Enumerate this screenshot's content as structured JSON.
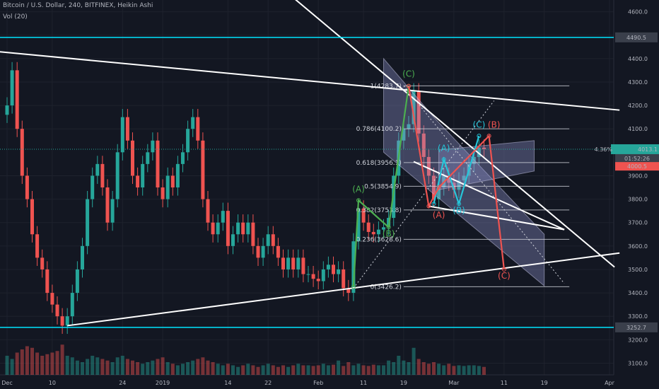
{
  "header": {
    "title": "Bitcoin / U.S. Dollar, 240, BITFINEX, Heikin Ashi",
    "volume_label": "Vol (20)"
  },
  "chart_data": {
    "type": "candlestick",
    "symbol": "Bitcoin / U.S. Dollar",
    "interval": "240",
    "exchange": "BITFINEX",
    "style": "Heikin Ashi",
    "ylim": [
      3050,
      4650
    ],
    "y_ticks": [
      4600.0,
      4500.0,
      4400.0,
      4300.0,
      4200.0,
      4100.0,
      3900.0,
      3800.0,
      3700.0,
      3600.0,
      3500.0,
      3400.0,
      3300.0,
      3200.0,
      3100.0
    ],
    "x_ticks": [
      "Dec",
      "10",
      "24",
      "2019",
      "14",
      "22",
      "Feb",
      "11",
      "19",
      "Mar",
      "11",
      "19",
      "Apr"
    ],
    "x_tick_days": [
      0,
      9,
      23,
      31,
      44,
      52,
      62,
      71,
      79,
      89,
      99,
      107,
      120
    ],
    "price_series": {
      "name": "BTC/USD Heikin Ashi (approx. daily)",
      "days": [
        0,
        1,
        2,
        3,
        4,
        5,
        6,
        7,
        8,
        9,
        10,
        11,
        12,
        13,
        14,
        15,
        16,
        17,
        18,
        19,
        20,
        21,
        22,
        23,
        24,
        25,
        26,
        27,
        28,
        29,
        30,
        31,
        32,
        33,
        34,
        35,
        36,
        37,
        38,
        39,
        40,
        41,
        42,
        43,
        44,
        45,
        46,
        47,
        48,
        49,
        50,
        51,
        52,
        53,
        54,
        55,
        56,
        57,
        58,
        59,
        60,
        61,
        62,
        63,
        64,
        65,
        66,
        67,
        68,
        69,
        70,
        71,
        72,
        73,
        74,
        75,
        76,
        77,
        78,
        79,
        80,
        81,
        82,
        83,
        84,
        85,
        86,
        87,
        88,
        89,
        90,
        91,
        92,
        93,
        94,
        95
      ],
      "values": [
        4200,
        4350,
        4100,
        3900,
        3800,
        3650,
        3550,
        3500,
        3400,
        3350,
        3300,
        3260,
        3300,
        3400,
        3500,
        3600,
        3800,
        3900,
        3950,
        3850,
        3700,
        3800,
        4000,
        4150,
        4050,
        3900,
        3850,
        3950,
        4000,
        4050,
        3850,
        3800,
        3900,
        3850,
        3950,
        4000,
        4100,
        4150,
        4050,
        3800,
        3700,
        3650,
        3700,
        3750,
        3600,
        3650,
        3700,
        3650,
        3700,
        3600,
        3550,
        3600,
        3650,
        3600,
        3550,
        3500,
        3550,
        3500,
        3550,
        3480,
        3480,
        3460,
        3450,
        3500,
        3520,
        3480,
        3500,
        3420,
        3400,
        3620,
        3760,
        3700,
        3660,
        3650,
        3670,
        3680,
        3720,
        3900,
        4050,
        4100,
        4120,
        4260,
        4080,
        3980,
        3900,
        3800,
        3850,
        3900,
        3870,
        3840,
        3880,
        3900,
        3950,
        3980,
        4020,
        4013
      ]
    },
    "volume_series": {
      "name": "Vol (20)",
      "days": [
        0,
        1,
        2,
        3,
        4,
        5,
        6,
        7,
        8,
        9,
        10,
        11,
        12,
        13,
        14,
        15,
        16,
        17,
        18,
        19,
        20,
        21,
        22,
        23,
        24,
        25,
        26,
        27,
        28,
        29,
        30,
        31,
        32,
        33,
        34,
        35,
        36,
        37,
        38,
        39,
        40,
        41,
        42,
        43,
        44,
        45,
        46,
        47,
        48,
        49,
        50,
        51,
        52,
        53,
        54,
        55,
        56,
        57,
        58,
        59,
        60,
        61,
        62,
        63,
        64,
        65,
        66,
        67,
        68,
        69,
        70,
        71,
        72,
        73,
        74,
        75,
        76,
        77,
        78,
        79,
        80,
        81,
        82,
        83,
        84,
        85,
        86,
        87,
        88,
        89,
        90,
        91,
        92,
        93,
        94,
        95
      ],
      "values": [
        60,
        50,
        70,
        80,
        90,
        85,
        70,
        60,
        65,
        70,
        75,
        95,
        60,
        55,
        45,
        40,
        50,
        60,
        55,
        50,
        45,
        40,
        55,
        60,
        50,
        45,
        40,
        35,
        40,
        45,
        50,
        55,
        40,
        35,
        30,
        35,
        40,
        45,
        50,
        55,
        45,
        40,
        35,
        30,
        35,
        30,
        25,
        30,
        35,
        30,
        25,
        30,
        35,
        30,
        25,
        30,
        25,
        30,
        35,
        30,
        30,
        28,
        30,
        35,
        30,
        32,
        45,
        28,
        40,
        30,
        35,
        30,
        28,
        32,
        30,
        30,
        45,
        40,
        60,
        45,
        40,
        85,
        50,
        40,
        35,
        40,
        35,
        30,
        35,
        28,
        30,
        28,
        30,
        30,
        28,
        25
      ]
    },
    "horizontal_levels": [
      {
        "price": 4490.5,
        "label": "4490.5"
      },
      {
        "price": 3252.7,
        "label": "3252.7"
      }
    ],
    "current_price": {
      "price": 4013.1,
      "label": "4013.1",
      "change": "4.36%",
      "countdown": "01:52:26"
    },
    "secondary_price": {
      "price": 4000.5,
      "label": "4000.5"
    },
    "fibonacci": {
      "levels": [
        {
          "price": 4283.7,
          "label": "1(4283.7)"
        },
        {
          "price": 4100.2,
          "label": "0.786(4100.2)"
        },
        {
          "price": 3956.1,
          "label": "0.618(3956.1)"
        },
        {
          "price": 3854.9,
          "label": "0.5(3854.9)"
        },
        {
          "price": 3753.8,
          "label": "0.382(3753.8)"
        },
        {
          "price": 3628.6,
          "label": "0.236(3628.6)"
        },
        {
          "price": 3426.2,
          "label": "0(3426.2)"
        }
      ],
      "day_start": 79,
      "day_end": 112
    },
    "trendlines": [
      {
        "name": "upper-resistance",
        "from": {
          "day": -2,
          "price": 4430
        },
        "to": {
          "day": 122,
          "price": 4180
        }
      },
      {
        "name": "lower-support",
        "from": {
          "day": 12,
          "price": 3260
        },
        "to": {
          "day": 122,
          "price": 3570
        }
      },
      {
        "name": "steep-descending",
        "from": {
          "day": 57,
          "price": 4660
        },
        "to": {
          "day": 121,
          "price": 3510
        }
      },
      {
        "name": "channel-lower",
        "from": {
          "day": 81,
          "price": 3960
        },
        "to": {
          "day": 111,
          "price": 3670
        }
      },
      {
        "name": "wedge-line",
        "from": {
          "day": 84,
          "price": 3770
        },
        "to": {
          "day": 111,
          "price": 3670
        }
      }
    ],
    "dotted_lines": [
      {
        "from": {
          "day": 69,
          "price": 3420
        },
        "to": {
          "day": 97,
          "price": 4220
        }
      },
      {
        "from": {
          "day": 79,
          "price": 4283.7
        },
        "to": {
          "day": 111,
          "price": 3440
        }
      }
    ],
    "projection_channels": [
      {
        "name": "large-channel",
        "points": [
          [
            75,
            4400
          ],
          [
            85,
            4150
          ],
          [
            107,
            3650
          ],
          [
            107,
            3430
          ],
          [
            75,
            4000
          ]
        ]
      },
      {
        "name": "small-channel",
        "points": [
          [
            86,
            4010
          ],
          [
            105,
            4050
          ],
          [
            105,
            3920
          ],
          [
            86,
            3840
          ]
        ]
      }
    ],
    "waves": [
      {
        "name": "green-impulse",
        "color": "#4caf50",
        "points": [
          {
            "day": 69,
            "price": 3426
          },
          {
            "day": 70,
            "price": 3795
          },
          {
            "day": 76,
            "price": 3680
          },
          {
            "day": 80,
            "price": 4283
          }
        ],
        "labels": [
          {
            "text": "(A)",
            "day": 70,
            "price": 3830
          },
          {
            "text": "(B)",
            "day": 76,
            "price": 3640
          },
          {
            "text": "(C)",
            "day": 80,
            "price": 4322
          }
        ]
      },
      {
        "name": "cyan-correction",
        "color": "#26c6da",
        "points": [
          {
            "day": 85,
            "price": 3780
          },
          {
            "day": 87,
            "price": 3970
          },
          {
            "day": 90,
            "price": 3780
          },
          {
            "day": 94,
            "price": 4070
          }
        ],
        "labels": [
          {
            "text": "(A)",
            "day": 87,
            "price": 4005
          },
          {
            "text": "(B)",
            "day": 90,
            "price": 3740
          },
          {
            "text": "(C)",
            "day": 94,
            "price": 4105
          }
        ]
      },
      {
        "name": "red-projection",
        "color": "#ef5350",
        "points": [
          {
            "day": 80,
            "price": 4283
          },
          {
            "day": 84,
            "price": 3770
          },
          {
            "day": 86,
            "price": 3850
          },
          {
            "day": 96,
            "price": 4070
          },
          {
            "day": 99,
            "price": 3500
          }
        ],
        "labels": [
          {
            "text": "(A)",
            "day": 86,
            "price": 3720
          },
          {
            "text": "(B)",
            "day": 97,
            "price": 4105
          },
          {
            "text": "(C)",
            "day": 99,
            "price": 3460
          }
        ]
      }
    ]
  },
  "colors": {
    "background": "#131722",
    "grid": "#1e222d",
    "axis_text": "#b2b5be",
    "up": "#26a69a",
    "down": "#ef5350",
    "level_line": "#00e5ff",
    "trendline": "#ffffff",
    "fib_line": "#d1d4dc",
    "channel_fill": "rgba(149,152,212,0.35)",
    "price_badge": "#26a69a",
    "secondary_badge": "#ef5350"
  }
}
